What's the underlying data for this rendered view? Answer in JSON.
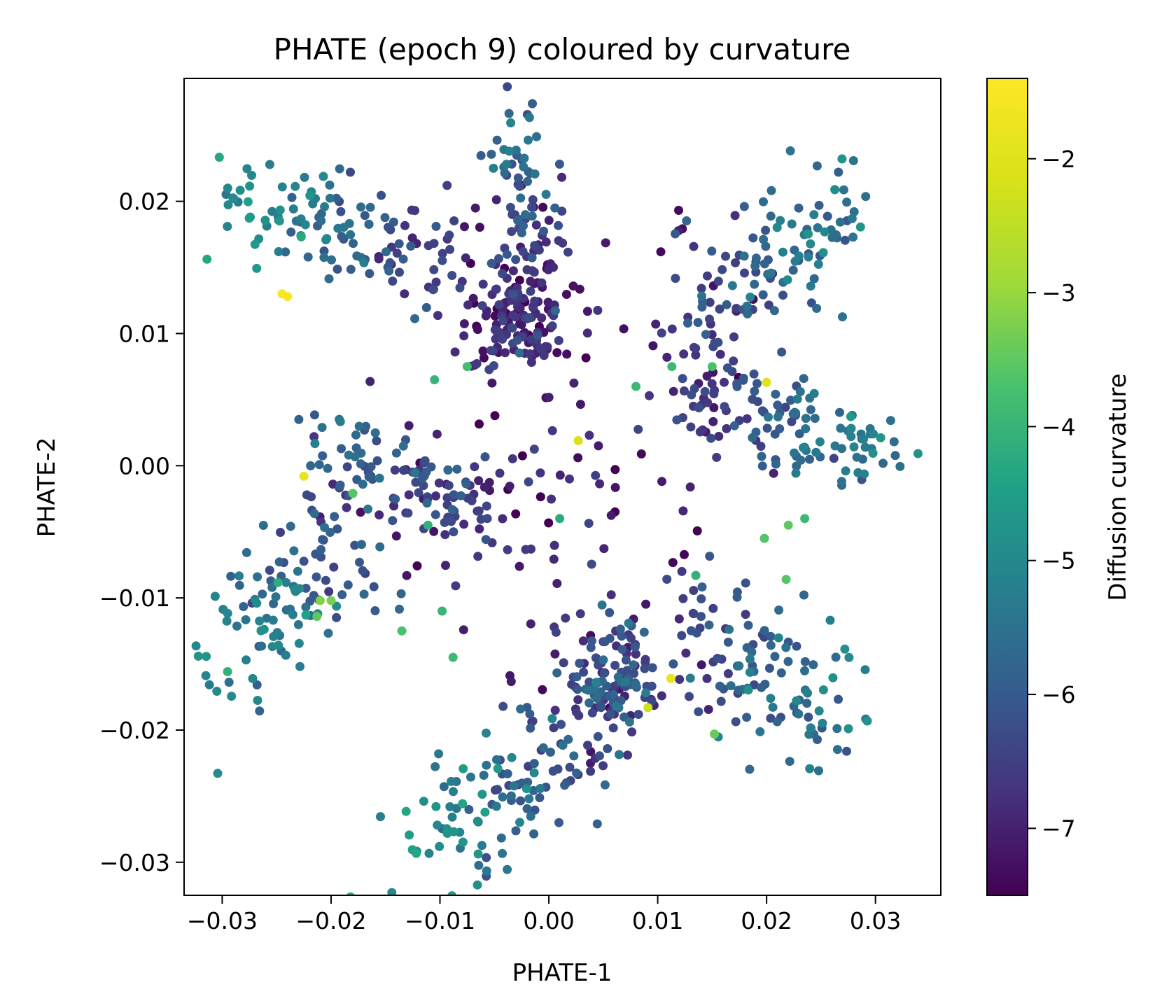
{
  "chart_data": {
    "type": "scatter",
    "title": "PHATE (epoch 9) coloured by curvature",
    "xlabel": "PHATE-1",
    "ylabel": "PHATE-2",
    "xlim": [
      -0.0335,
      0.036
    ],
    "ylim": [
      -0.0325,
      0.0293
    ],
    "xticks": [
      -0.03,
      -0.02,
      -0.01,
      0.0,
      0.01,
      0.02,
      0.03
    ],
    "xtick_labels": [
      "−0.03",
      "−0.02",
      "−0.01",
      "0.00",
      "0.01",
      "0.02",
      "0.03"
    ],
    "yticks": [
      -0.03,
      -0.02,
      -0.01,
      0.0,
      0.01,
      0.02
    ],
    "ytick_labels": [
      "−0.03",
      "−0.02",
      "−0.01",
      "0.00",
      "0.01",
      "0.02"
    ],
    "grid": false,
    "colormap": "viridis",
    "colorbar": {
      "label": "Diffusion curvature",
      "range": [
        -7.5,
        -1.4
      ],
      "ticks": [
        -7,
        -6,
        -5,
        -4,
        -3,
        -2
      ],
      "tick_labels": [
        "−7",
        "−6",
        "−5",
        "−4",
        "−3",
        "−2"
      ]
    },
    "arms": [
      {
        "from": [
          -0.029,
          0.0205
        ],
        "to": [
          -0.009,
          0.015
        ],
        "c_from": -4.8,
        "c_to": -6.6,
        "n": 130,
        "spread": 0.002
      },
      {
        "from": [
          -0.003,
          0.0255
        ],
        "to": [
          -0.001,
          0.013
        ],
        "c_from": -5.4,
        "c_to": -6.9,
        "n": 90,
        "spread": 0.0015
      },
      {
        "from": [
          0.027,
          0.0195
        ],
        "to": [
          0.014,
          0.011
        ],
        "c_from": -5.2,
        "c_to": -6.5,
        "n": 120,
        "spread": 0.0025
      },
      {
        "from": [
          0.032,
          0.0
        ],
        "to": [
          0.012,
          0.006
        ],
        "c_from": -5.0,
        "c_to": -6.8,
        "n": 135,
        "spread": 0.0018
      },
      {
        "from": [
          -0.021,
          0.001
        ],
        "to": [
          -0.006,
          -0.003
        ],
        "c_from": -5.6,
        "c_to": -6.8,
        "n": 110,
        "spread": 0.0017
      },
      {
        "from": [
          -0.0285,
          -0.014
        ],
        "to": [
          -0.019,
          -0.006
        ],
        "c_from": -5.0,
        "c_to": -6.2,
        "n": 115,
        "spread": 0.0025
      },
      {
        "from": [
          -0.012,
          -0.029
        ],
        "to": [
          0.004,
          -0.019
        ],
        "c_from": -4.7,
        "c_to": -6.6,
        "n": 140,
        "spread": 0.0028
      },
      {
        "from": [
          0.026,
          -0.019
        ],
        "to": [
          0.012,
          -0.012
        ],
        "c_from": -5.2,
        "c_to": -6.7,
        "n": 120,
        "spread": 0.0024
      }
    ],
    "clusters": [
      {
        "center": [
          -0.003,
          0.011
        ],
        "n": 120,
        "spread": 0.0022,
        "c": -6.8
      },
      {
        "center": [
          0.006,
          -0.016
        ],
        "n": 110,
        "spread": 0.0022,
        "c": -6.2
      },
      {
        "center": [
          0.002,
          0.004
        ],
        "n": 70,
        "spread": 0.0075,
        "c": -7.1
      },
      {
        "center": [
          -0.002,
          -0.006
        ],
        "n": 45,
        "spread": 0.006,
        "c": -7.0
      }
    ],
    "highlights": [
      {
        "x": -0.0245,
        "y": 0.013,
        "c": -1.5
      },
      {
        "x": -0.024,
        "y": 0.0128,
        "c": -1.5
      },
      {
        "x": -0.0225,
        "y": -0.0008,
        "c": -1.8
      },
      {
        "x": 0.0027,
        "y": 0.0019,
        "c": -2.1
      },
      {
        "x": 0.02,
        "y": 0.0063,
        "c": -2.0
      },
      {
        "x": 0.0112,
        "y": -0.0161,
        "c": -1.8
      },
      {
        "x": 0.0091,
        "y": -0.0183,
        "c": -2.3
      },
      {
        "x": -0.021,
        "y": -0.0102,
        "c": -3.2
      },
      {
        "x": -0.0213,
        "y": -0.0114,
        "c": -3.5
      },
      {
        "x": -0.02,
        "y": -0.0102,
        "c": -3.3
      },
      {
        "x": -0.018,
        "y": -0.0021,
        "c": -3.6
      },
      {
        "x": -0.0135,
        "y": -0.0125,
        "c": -3.7
      },
      {
        "x": -0.0098,
        "y": -0.011,
        "c": -4.0
      },
      {
        "x": -0.0088,
        "y": -0.0145,
        "c": -3.9
      },
      {
        "x": -0.0075,
        "y": 0.0075,
        "c": -3.8
      },
      {
        "x": 0.015,
        "y": 0.0075,
        "c": -3.7
      },
      {
        "x": 0.0113,
        "y": 0.0075,
        "c": -3.9
      },
      {
        "x": 0.0152,
        "y": -0.0203,
        "c": -3.4
      },
      {
        "x": 0.0218,
        "y": -0.0086,
        "c": -3.6
      },
      {
        "x": 0.022,
        "y": -0.0045,
        "c": -3.5
      },
      {
        "x": 0.0235,
        "y": -0.004,
        "c": -3.9
      },
      {
        "x": 0.0198,
        "y": -0.0055,
        "c": -3.6
      },
      {
        "x": 0.0135,
        "y": -0.0083,
        "c": -4.1
      },
      {
        "x": 0.008,
        "y": 0.006,
        "c": -3.9
      },
      {
        "x": -0.0105,
        "y": 0.0065,
        "c": -4.0
      },
      {
        "x": 0.001,
        "y": -0.004,
        "c": -4.2
      },
      {
        "x": -0.0111,
        "y": -0.0045,
        "c": -4.1
      }
    ]
  }
}
